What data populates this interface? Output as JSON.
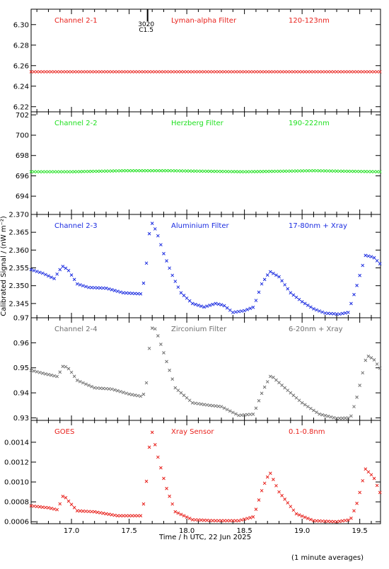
{
  "figure": {
    "ylabel": "Calibrated Signal / (nW m⁻²)",
    "xlabel": "Time / h UTC, 22 Jun 2025",
    "footnote": "(1 minute averages)",
    "marker_label_top": "3020",
    "marker_label_bottom": "C1.5",
    "marker_time_h": 17.66,
    "x_ticks": [
      "17.0",
      "17.5",
      "18.0",
      "18.5",
      "19.0",
      "19.5"
    ]
  },
  "chart_data": [
    {
      "type": "scatter",
      "panel_label": "Channel 2-1",
      "filter_label": "Lyman-alpha Filter",
      "band_label": "120-123nm",
      "color": "#e8211c",
      "xlim": [
        16.65,
        19.68
      ],
      "ylim": [
        6.215,
        6.315
      ],
      "y_ticks": [
        "6.22",
        "6.24",
        "6.26",
        "6.28",
        "6.30"
      ],
      "x": [
        16.65,
        19.68
      ],
      "series": [
        {
          "points": [
            [
              16.65,
              6.254
            ],
            [
              17.0,
              6.254
            ],
            [
              17.5,
              6.254
            ],
            [
              18.0,
              6.254
            ],
            [
              18.5,
              6.254
            ],
            [
              19.0,
              6.254
            ],
            [
              19.68,
              6.254
            ]
          ]
        }
      ]
    },
    {
      "type": "scatter",
      "panel_label": "Channel 2-2",
      "filter_label": "Herzberg Filter",
      "band_label": "190-222nm",
      "color": "#20e020",
      "xlim": [
        16.65,
        19.68
      ],
      "ylim": [
        692.2,
        702.3
      ],
      "y_ticks": [
        "694",
        "696",
        "698",
        "700",
        "702"
      ],
      "series": [
        {
          "points": [
            [
              16.65,
              696.4
            ],
            [
              17.0,
              696.4
            ],
            [
              17.45,
              696.5
            ],
            [
              17.85,
              696.5
            ],
            [
              18.5,
              696.4
            ],
            [
              19.1,
              696.5
            ],
            [
              19.68,
              696.4
            ]
          ]
        }
      ]
    },
    {
      "type": "scatter",
      "panel_label": "Channel 2-3",
      "filter_label": "Aluminium Filter",
      "band_label": "17-80nm + Xray",
      "color": "#1a2be0",
      "xlim": [
        16.65,
        19.68
      ],
      "ylim": [
        2.341,
        2.37
      ],
      "y_ticks": [
        "2.345",
        "2.350",
        "2.355",
        "2.360",
        "2.365",
        "2.370"
      ],
      "series": [
        {
          "points": [
            [
              16.65,
              2.3545
            ],
            [
              16.75,
              2.3535
            ],
            [
              16.85,
              2.352
            ],
            [
              16.92,
              2.3555
            ],
            [
              16.97,
              2.3545
            ],
            [
              17.05,
              2.3505
            ],
            [
              17.15,
              2.3495
            ],
            [
              17.3,
              2.3493
            ],
            [
              17.45,
              2.348
            ],
            [
              17.6,
              2.3477
            ],
            [
              17.64,
              2.3525
            ],
            [
              17.67,
              2.364
            ],
            [
              17.7,
              2.3675
            ],
            [
              17.74,
              2.365
            ],
            [
              17.8,
              2.359
            ],
            [
              17.88,
              2.3525
            ],
            [
              17.95,
              2.348
            ],
            [
              18.05,
              2.345
            ],
            [
              18.15,
              2.344
            ],
            [
              18.25,
              2.345
            ],
            [
              18.32,
              2.3445
            ],
            [
              18.4,
              2.3425
            ],
            [
              18.5,
              2.343
            ],
            [
              18.58,
              2.344
            ],
            [
              18.65,
              2.3505
            ],
            [
              18.72,
              2.354
            ],
            [
              18.8,
              2.3525
            ],
            [
              18.9,
              2.348
            ],
            [
              19.0,
              2.3455
            ],
            [
              19.1,
              2.3435
            ],
            [
              19.2,
              2.3423
            ],
            [
              19.32,
              2.342
            ],
            [
              19.4,
              2.3425
            ],
            [
              19.47,
              2.3495
            ],
            [
              19.55,
              2.3585
            ],
            [
              19.62,
              2.358
            ],
            [
              19.68,
              2.356
            ]
          ]
        }
      ]
    },
    {
      "type": "scatter",
      "panel_label": "Channel 2-4",
      "filter_label": "Zirconium Filter",
      "band_label": "6-20nm + Xray",
      "color": "#707070",
      "xlim": [
        16.65,
        19.68
      ],
      "ylim": [
        0.929,
        0.97
      ],
      "y_ticks": [
        "0.93",
        "0.94",
        "0.95",
        "0.96",
        "0.97"
      ],
      "series": [
        {
          "points": [
            [
              16.65,
              0.949
            ],
            [
              16.78,
              0.9475
            ],
            [
              16.88,
              0.9465
            ],
            [
              16.93,
              0.951
            ],
            [
              16.98,
              0.9495
            ],
            [
              17.05,
              0.945
            ],
            [
              17.2,
              0.942
            ],
            [
              17.35,
              0.9415
            ],
            [
              17.5,
              0.9395
            ],
            [
              17.62,
              0.9385
            ],
            [
              17.65,
              0.944
            ],
            [
              17.69,
              0.966
            ],
            [
              17.73,
              0.9655
            ],
            [
              17.8,
              0.956
            ],
            [
              17.9,
              0.942
            ],
            [
              18.05,
              0.936
            ],
            [
              18.2,
              0.935
            ],
            [
              18.3,
              0.9345
            ],
            [
              18.45,
              0.931
            ],
            [
              18.58,
              0.9315
            ],
            [
              18.66,
              0.941
            ],
            [
              18.73,
              0.947
            ],
            [
              18.85,
              0.942
            ],
            [
              19.0,
              0.936
            ],
            [
              19.15,
              0.9315
            ],
            [
              19.3,
              0.9298
            ],
            [
              19.42,
              0.93
            ],
            [
              19.48,
              0.939
            ],
            [
              19.56,
              0.955
            ],
            [
              19.62,
              0.9535
            ],
            [
              19.68,
              0.9495
            ]
          ]
        }
      ]
    },
    {
      "type": "scatter",
      "panel_label": "GOES",
      "filter_label": "Xray Sensor",
      "band_label": "0.1-0.8nm",
      "color": "#e8211c",
      "xlim": [
        16.65,
        19.68
      ],
      "ylim": [
        0.00058,
        0.00162
      ],
      "y_ticks": [
        "0.0006",
        "0.0008",
        "0.0010",
        "0.0012",
        "0.0014"
      ],
      "series": [
        {
          "points": [
            [
              16.65,
              0.00076
            ],
            [
              16.8,
              0.00074
            ],
            [
              16.88,
              0.00072
            ],
            [
              16.93,
              0.00087
            ],
            [
              16.98,
              0.0008
            ],
            [
              17.05,
              0.00071
            ],
            [
              17.2,
              0.0007
            ],
            [
              17.4,
              0.00066
            ],
            [
              17.6,
              0.00066
            ],
            [
              17.64,
              0.00085
            ],
            [
              17.67,
              0.00132
            ],
            [
              17.7,
              0.0015
            ],
            [
              17.75,
              0.00125
            ],
            [
              17.82,
              0.00095
            ],
            [
              17.9,
              0.0007
            ],
            [
              18.05,
              0.00062
            ],
            [
              18.25,
              0.00061
            ],
            [
              18.45,
              0.00061
            ],
            [
              18.58,
              0.00065
            ],
            [
              18.66,
              0.00095
            ],
            [
              18.72,
              0.0011
            ],
            [
              18.8,
              0.0009
            ],
            [
              18.95,
              0.00068
            ],
            [
              19.1,
              0.00061
            ],
            [
              19.3,
              0.0006
            ],
            [
              19.42,
              0.00062
            ],
            [
              19.48,
              0.0008
            ],
            [
              19.55,
              0.00113
            ],
            [
              19.62,
              0.00105
            ],
            [
              19.68,
              0.00088
            ]
          ]
        }
      ]
    }
  ]
}
